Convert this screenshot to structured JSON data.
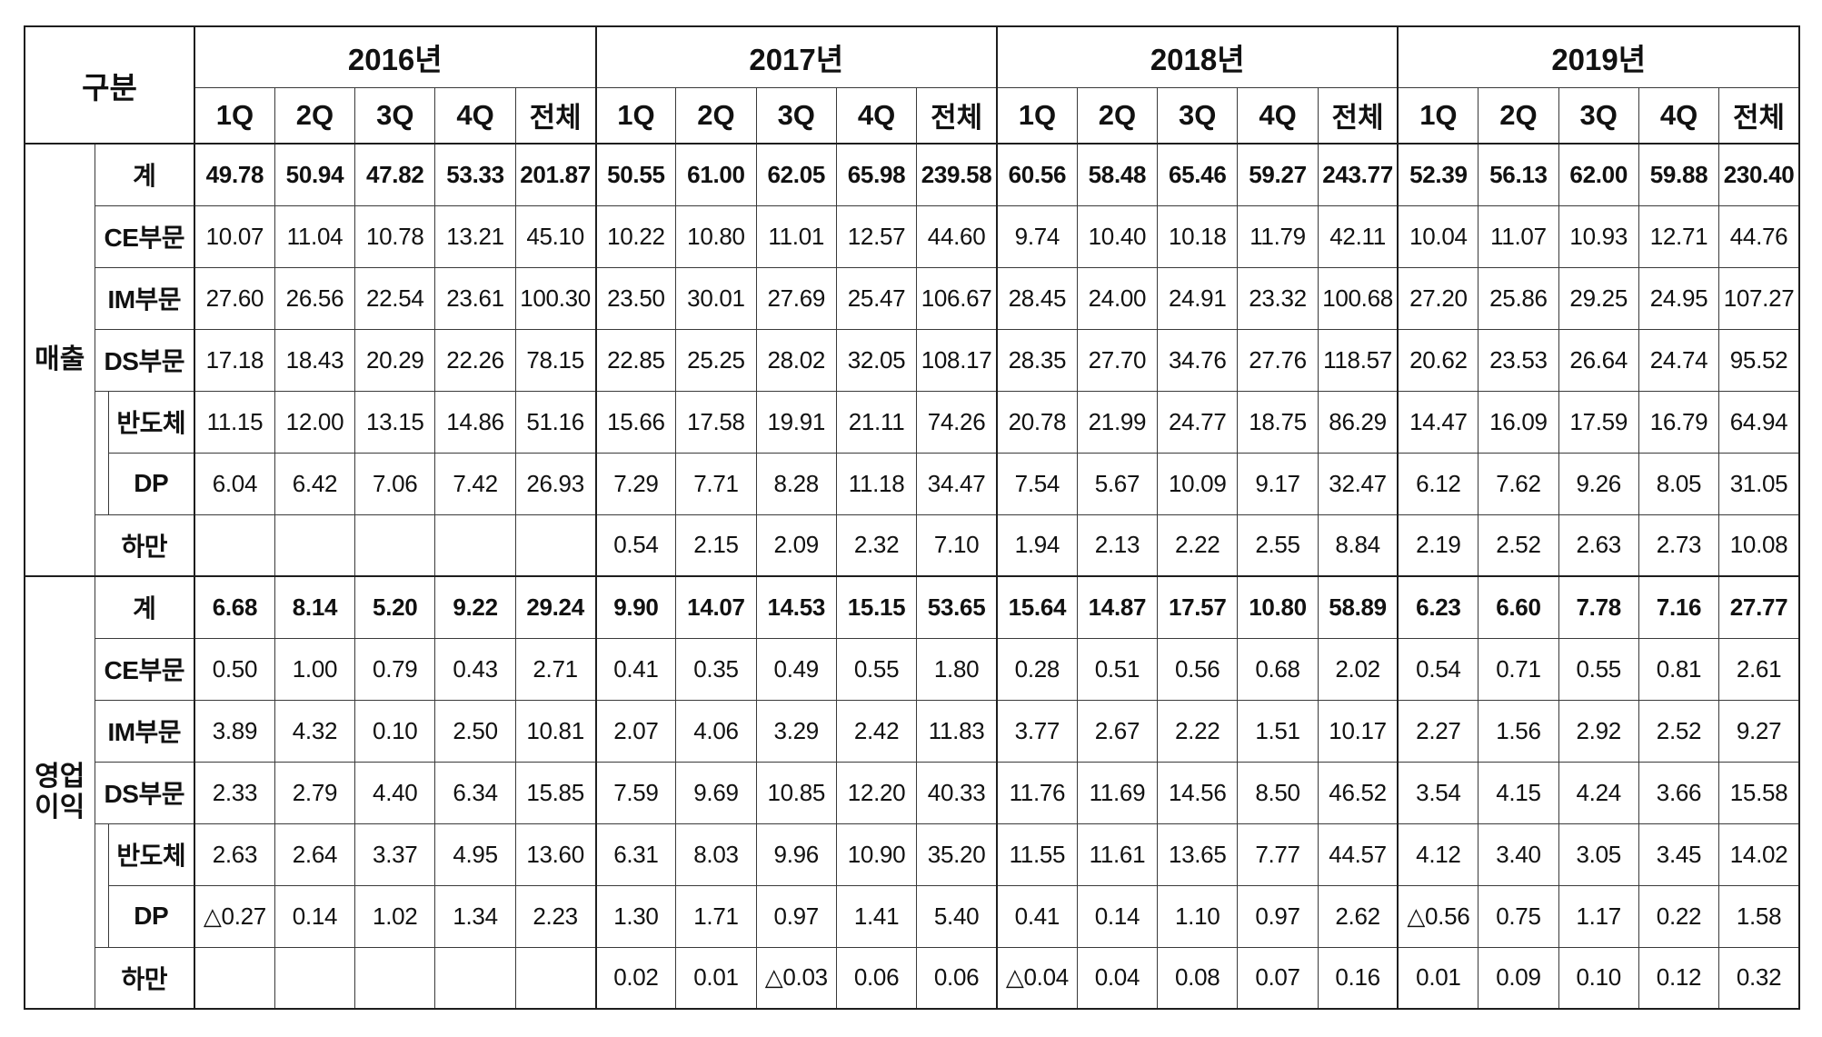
{
  "header": {
    "category_label": "구분",
    "years": [
      {
        "label": "2016년",
        "quarters": [
          "1Q",
          "2Q",
          "3Q",
          "4Q",
          "전체"
        ]
      },
      {
        "label": "2017년",
        "quarters": [
          "1Q",
          "2Q",
          "3Q",
          "4Q",
          "전체"
        ]
      },
      {
        "label": "2018년",
        "quarters": [
          "1Q",
          "2Q",
          "3Q",
          "4Q",
          "전체"
        ]
      },
      {
        "label": "2019년",
        "quarters": [
          "1Q",
          "2Q",
          "3Q",
          "4Q",
          "전체"
        ]
      }
    ]
  },
  "sections": [
    {
      "label": "매출",
      "rows": [
        {
          "label": "계",
          "values": [
            "49.78",
            "50.94",
            "47.82",
            "53.33",
            "201.87",
            "50.55",
            "61.00",
            "62.05",
            "65.98",
            "239.58",
            "60.56",
            "58.48",
            "65.46",
            "59.27",
            "243.77",
            "52.39",
            "56.13",
            "62.00",
            "59.88",
            "230.40"
          ]
        },
        {
          "label": "CE부문",
          "values": [
            "10.07",
            "11.04",
            "10.78",
            "13.21",
            "45.10",
            "10.22",
            "10.80",
            "11.01",
            "12.57",
            "44.60",
            "9.74",
            "10.40",
            "10.18",
            "11.79",
            "42.11",
            "10.04",
            "11.07",
            "10.93",
            "12.71",
            "44.76"
          ]
        },
        {
          "label": "IM부문",
          "values": [
            "27.60",
            "26.56",
            "22.54",
            "23.61",
            "100.30",
            "23.50",
            "30.01",
            "27.69",
            "25.47",
            "106.67",
            "28.45",
            "24.00",
            "24.91",
            "23.32",
            "100.68",
            "27.20",
            "25.86",
            "29.25",
            "24.95",
            "107.27"
          ]
        },
        {
          "label": "DS부문",
          "values": [
            "17.18",
            "18.43",
            "20.29",
            "22.26",
            "78.15",
            "22.85",
            "25.25",
            "28.02",
            "32.05",
            "108.17",
            "28.35",
            "27.70",
            "34.76",
            "27.76",
            "118.57",
            "20.62",
            "23.53",
            "26.64",
            "24.74",
            "95.52"
          ],
          "children": [
            {
              "label": "반도체",
              "values": [
                "11.15",
                "12.00",
                "13.15",
                "14.86",
                "51.16",
                "15.66",
                "17.58",
                "19.91",
                "21.11",
                "74.26",
                "20.78",
                "21.99",
                "24.77",
                "18.75",
                "86.29",
                "14.47",
                "16.09",
                "17.59",
                "16.79",
                "64.94"
              ]
            },
            {
              "label": "DP",
              "values": [
                "6.04",
                "6.42",
                "7.06",
                "7.42",
                "26.93",
                "7.29",
                "7.71",
                "8.28",
                "11.18",
                "34.47",
                "7.54",
                "5.67",
                "10.09",
                "9.17",
                "32.47",
                "6.12",
                "7.62",
                "9.26",
                "8.05",
                "31.05"
              ]
            }
          ]
        },
        {
          "label": "하만",
          "values": [
            "",
            "",
            "",
            "",
            "",
            "0.54",
            "2.15",
            "2.09",
            "2.32",
            "7.10",
            "1.94",
            "2.13",
            "2.22",
            "2.55",
            "8.84",
            "2.19",
            "2.52",
            "2.63",
            "2.73",
            "10.08"
          ]
        }
      ]
    },
    {
      "label": "영업이익",
      "rows": [
        {
          "label": "계",
          "values": [
            "6.68",
            "8.14",
            "5.20",
            "9.22",
            "29.24",
            "9.90",
            "14.07",
            "14.53",
            "15.15",
            "53.65",
            "15.64",
            "14.87",
            "17.57",
            "10.80",
            "58.89",
            "6.23",
            "6.60",
            "7.78",
            "7.16",
            "27.77"
          ]
        },
        {
          "label": "CE부문",
          "values": [
            "0.50",
            "1.00",
            "0.79",
            "0.43",
            "2.71",
            "0.41",
            "0.35",
            "0.49",
            "0.55",
            "1.80",
            "0.28",
            "0.51",
            "0.56",
            "0.68",
            "2.02",
            "0.54",
            "0.71",
            "0.55",
            "0.81",
            "2.61"
          ]
        },
        {
          "label": "IM부문",
          "values": [
            "3.89",
            "4.32",
            "0.10",
            "2.50",
            "10.81",
            "2.07",
            "4.06",
            "3.29",
            "2.42",
            "11.83",
            "3.77",
            "2.67",
            "2.22",
            "1.51",
            "10.17",
            "2.27",
            "1.56",
            "2.92",
            "2.52",
            "9.27"
          ]
        },
        {
          "label": "DS부문",
          "values": [
            "2.33",
            "2.79",
            "4.40",
            "6.34",
            "15.85",
            "7.59",
            "9.69",
            "10.85",
            "12.20",
            "40.33",
            "11.76",
            "11.69",
            "14.56",
            "8.50",
            "46.52",
            "3.54",
            "4.15",
            "4.24",
            "3.66",
            "15.58"
          ],
          "children": [
            {
              "label": "반도체",
              "values": [
                "2.63",
                "2.64",
                "3.37",
                "4.95",
                "13.60",
                "6.31",
                "8.03",
                "9.96",
                "10.90",
                "35.20",
                "11.55",
                "11.61",
                "13.65",
                "7.77",
                "44.57",
                "4.12",
                "3.40",
                "3.05",
                "3.45",
                "14.02"
              ]
            },
            {
              "label": "DP",
              "values": [
                "△0.27",
                "0.14",
                "1.02",
                "1.34",
                "2.23",
                "1.30",
                "1.71",
                "0.97",
                "1.41",
                "5.40",
                "0.41",
                "0.14",
                "1.10",
                "0.97",
                "2.62",
                "△0.56",
                "0.75",
                "1.17",
                "0.22",
                "1.58"
              ]
            }
          ]
        },
        {
          "label": "하만",
          "values": [
            "",
            "",
            "",
            "",
            "",
            "0.02",
            "0.01",
            "△0.03",
            "0.06",
            "0.06",
            "△0.04",
            "0.04",
            "0.08",
            "0.07",
            "0.16",
            "0.01",
            "0.09",
            "0.10",
            "0.12",
            "0.32"
          ]
        }
      ]
    }
  ]
}
